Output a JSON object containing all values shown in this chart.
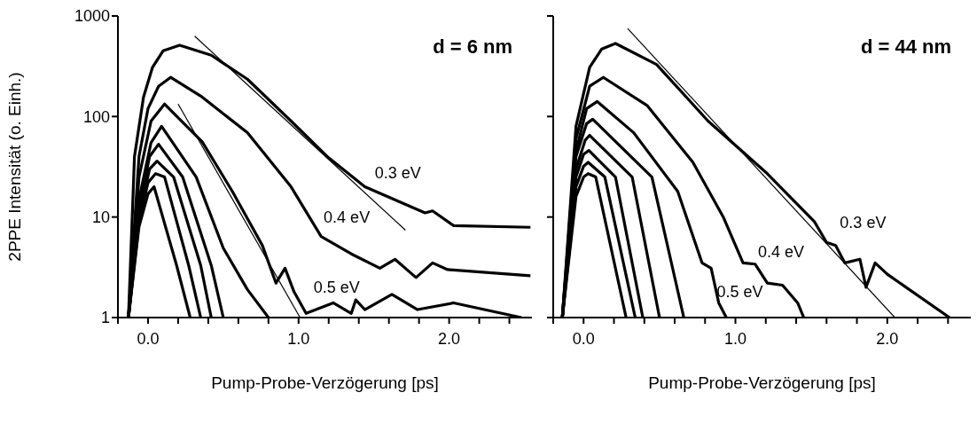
{
  "chart_data": [
    {
      "type": "line",
      "title": "d = 6 nm",
      "xlabel": "Pump-Probe-Verzögerung [ps]",
      "ylabel": "2PPE Intensität (o. Einh.)",
      "log": "y",
      "xlim": [
        -0.2,
        2.55
      ],
      "ylim": [
        1,
        1000
      ],
      "yticks": [
        1,
        10,
        100,
        1000
      ],
      "xticks": [
        {
          "value": -0.2,
          "label": null
        },
        {
          "value": 0,
          "label": "0.0"
        },
        {
          "value": 0.2,
          "label": null
        },
        {
          "value": 0.4,
          "label": null
        },
        {
          "value": 0.6,
          "label": null
        },
        {
          "value": 0.8,
          "label": null
        },
        {
          "value": 1,
          "label": "1.0"
        },
        {
          "value": 1.2,
          "label": null
        },
        {
          "value": 1.4,
          "label": null
        },
        {
          "value": 1.6,
          "label": null
        },
        {
          "value": 1.8,
          "label": null
        },
        {
          "value": 2,
          "label": "2.0"
        },
        {
          "value": 2.2,
          "label": null
        },
        {
          "value": 2.4,
          "label": null
        }
      ],
      "series": [
        {
          "name": "0.3 eV",
          "color": "#000000",
          "x": [
            -0.13,
            -0.09,
            -0.03,
            0.03,
            0.1,
            0.21,
            0.42,
            0.66,
            0.95,
            1.19,
            1.44,
            1.84,
            1.89,
            2.03,
            2.54
          ],
          "values": [
            1,
            40,
            156,
            309,
            450,
            512,
            407,
            235,
            90,
            40,
            20,
            11,
            11.5,
            8.2,
            7.9
          ]
        },
        {
          "name": "0.4 eV",
          "color": "#000000",
          "x": [
            -0.13,
            -0.06,
            0,
            0.07,
            0.15,
            0.36,
            0.66,
            0.95,
            1.15,
            1.35,
            1.54,
            1.64,
            1.78,
            1.89,
            1.99,
            2.54
          ],
          "values": [
            1,
            40,
            120,
            200,
            245,
            156,
            69,
            20,
            6.4,
            4.3,
            3.1,
            3.8,
            2.5,
            3.5,
            3.0,
            2.6
          ]
        },
        {
          "name": "0.5 eV",
          "color": "#000000",
          "x": [
            -0.13,
            -0.06,
            0.02,
            0.11,
            0.36,
            0.56,
            0.76,
            0.85,
            0.91,
            0.97,
            1.05,
            1.23,
            1.35,
            1.38,
            1.44,
            1.62,
            1.79,
            2.03,
            2.48
          ],
          "values": [
            1,
            25,
            90,
            133,
            56,
            18,
            5.2,
            2.2,
            3.1,
            1.8,
            1.1,
            1.4,
            1.1,
            1.5,
            1.2,
            1.7,
            1.2,
            1.4,
            1.0
          ]
        },
        {
          "color": "#000000",
          "x": [
            -0.13,
            -0.06,
            0.02,
            0.09,
            0.32,
            0.5,
            0.66,
            0.8
          ],
          "values": [
            1,
            15,
            55,
            80,
            25,
            4.9,
            1.9,
            1
          ]
        },
        {
          "color": "#000000",
          "x": [
            -0.13,
            -0.06,
            0.01,
            0.07,
            0.23,
            0.42,
            0.5
          ],
          "values": [
            1,
            12,
            40,
            53,
            25,
            3.3,
            1
          ]
        },
        {
          "color": "#000000",
          "x": [
            -0.13,
            -0.06,
            0.01,
            0.06,
            0.17,
            0.35,
            0.42
          ],
          "values": [
            1,
            10,
            30,
            36,
            25,
            3.3,
            1
          ]
        },
        {
          "color": "#000000",
          "x": [
            -0.13,
            -0.06,
            0,
            0.05,
            0.11,
            0.27,
            0.35
          ],
          "values": [
            1,
            9,
            22,
            27,
            25,
            3.3,
            1
          ]
        },
        {
          "color": "#000000",
          "x": [
            -0.13,
            -0.06,
            0,
            0.04,
            0.19,
            0.28
          ],
          "values": [
            1,
            8,
            17,
            20,
            3.3,
            1
          ]
        },
        {
          "type": "line",
          "color": "#000000",
          "x": [
            0.31,
            1.71
          ],
          "values": [
            630,
            7.4
          ]
        },
        {
          "type": "line",
          "color": "#000000",
          "x": [
            0.2,
            1.01
          ],
          "values": [
            133,
            1.0
          ]
        }
      ]
    },
    {
      "type": "line",
      "title": "d = 44 nm",
      "xlabel": "Pump-Probe-Verzögerung [ps]",
      "log": "y",
      "tick_labels": "x",
      "xlim": [
        -0.2,
        2.55
      ],
      "ylim": [
        1,
        1000
      ],
      "yticks": [
        1,
        10,
        100,
        1000
      ],
      "xticks": [
        {
          "value": -0.2,
          "label": null
        },
        {
          "value": 0,
          "label": "0.0"
        },
        {
          "value": 0.2,
          "label": null
        },
        {
          "value": 0.4,
          "label": null
        },
        {
          "value": 0.6,
          "label": null
        },
        {
          "value": 0.8,
          "label": null
        },
        {
          "value": 1,
          "label": "1.0"
        },
        {
          "value": 1.2,
          "label": null
        },
        {
          "value": 1.4,
          "label": null
        },
        {
          "value": 1.6,
          "label": null
        },
        {
          "value": 1.8,
          "label": null
        },
        {
          "value": 2,
          "label": "2.0"
        },
        {
          "value": 2.2,
          "label": null
        },
        {
          "value": 2.4,
          "label": null
        }
      ],
      "series": [
        {
          "name": "0.3 eV",
          "color": "#000000",
          "x": [
            -0.14,
            -0.05,
            0.04,
            0.12,
            0.21,
            0.48,
            0.82,
            1.21,
            1.52,
            1.6,
            1.66,
            1.72,
            1.82,
            1.86,
            1.92,
            2.0,
            2.41
          ],
          "values": [
            1,
            80,
            309,
            470,
            533,
            330,
            90,
            27,
            9,
            5.6,
            5.2,
            3.5,
            3.8,
            2.0,
            3.5,
            2.7,
            1.0
          ]
        },
        {
          "name": "0.4 eV",
          "color": "#000000",
          "x": [
            -0.14,
            -0.05,
            0.04,
            0.13,
            0.42,
            0.72,
            0.92,
            1.05,
            1.13,
            1.21,
            1.31,
            1.41,
            1.45
          ],
          "values": [
            1,
            60,
            200,
            245,
            128,
            35,
            10,
            3.5,
            3.4,
            2.2,
            2.1,
            1.4,
            1.0
          ]
        },
        {
          "name": "0.5 eV",
          "color": "#000000",
          "x": [
            -0.14,
            -0.05,
            0.02,
            0.09,
            0.33,
            0.62,
            0.78,
            0.84,
            0.89,
            0.94
          ],
          "values": [
            1,
            45,
            120,
            141,
            69,
            18,
            3.5,
            3.1,
            1.4,
            1.0
          ]
        },
        {
          "color": "#000000",
          "x": [
            -0.14,
            -0.05,
            0.02,
            0.06,
            0.45,
            0.66
          ],
          "values": [
            1,
            40,
            85,
            94,
            25,
            1
          ]
        },
        {
          "color": "#000000",
          "x": [
            -0.14,
            -0.05,
            0.01,
            0.04,
            0.32,
            0.5
          ],
          "values": [
            1,
            30,
            58,
            65,
            25,
            1
          ]
        },
        {
          "color": "#000000",
          "x": [
            -0.14,
            -0.05,
            0,
            0.035,
            0.21,
            0.39
          ],
          "values": [
            1,
            25,
            42,
            46,
            25,
            1
          ]
        },
        {
          "color": "#000000",
          "x": [
            -0.14,
            -0.05,
            0,
            0.03,
            0.14,
            0.34
          ],
          "values": [
            1,
            20,
            32,
            35,
            25,
            1
          ]
        },
        {
          "color": "#000000",
          "x": [
            -0.14,
            -0.05,
            0,
            0.03,
            0.08,
            0.28
          ],
          "values": [
            1,
            16,
            25,
            27,
            25,
            1
          ]
        },
        {
          "type": "line",
          "color": "#000000",
          "x": [
            0.29,
            2.05
          ],
          "values": [
            750,
            1.0
          ]
        }
      ]
    }
  ]
}
